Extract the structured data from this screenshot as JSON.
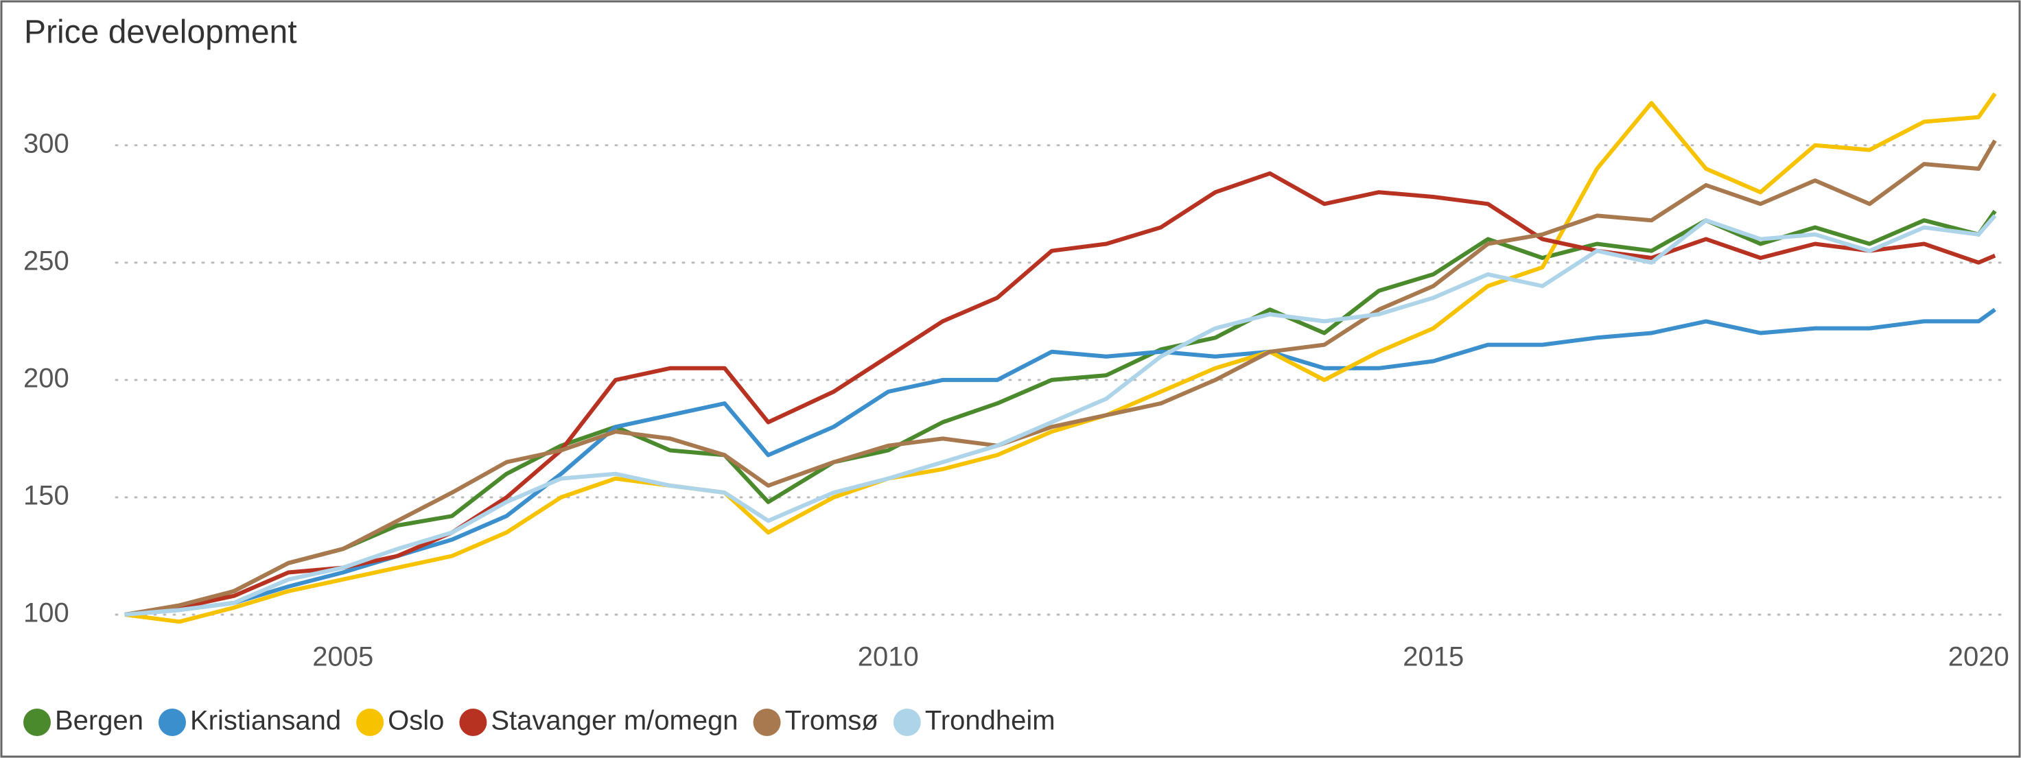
{
  "chart_data": {
    "type": "line",
    "title": "Price development",
    "x": [
      2003,
      2003.5,
      2004,
      2004.5,
      2005,
      2005.5,
      2006,
      2006.5,
      2007,
      2007.5,
      2008,
      2008.5,
      2008.9,
      2009.5,
      2010,
      2010.5,
      2011,
      2011.5,
      2012,
      2012.5,
      2013,
      2013.5,
      2014,
      2014.5,
      2015,
      2015.5,
      2016,
      2016.5,
      2017,
      2017.5,
      2018,
      2018.5,
      2019,
      2019.5,
      2020,
      2020.15
    ],
    "series": [
      {
        "name": "Bergen",
        "color": "#4a8a2c",
        "values": [
          100,
          103,
          110,
          122,
          128,
          138,
          142,
          160,
          172,
          180,
          170,
          168,
          148,
          165,
          170,
          182,
          190,
          200,
          202,
          213,
          218,
          230,
          220,
          238,
          245,
          260,
          252,
          258,
          255,
          268,
          258,
          265,
          258,
          268,
          262,
          272
        ]
      },
      {
        "name": "Kristiansand",
        "color": "#3a8fcc",
        "values": [
          100,
          102,
          105,
          112,
          118,
          125,
          132,
          142,
          160,
          180,
          185,
          190,
          168,
          180,
          195,
          200,
          200,
          212,
          210,
          212,
          210,
          212,
          205,
          205,
          208,
          215,
          215,
          218,
          220,
          225,
          220,
          222,
          222,
          225,
          225,
          230
        ]
      },
      {
        "name": "Oslo",
        "color": "#f7c300",
        "values": [
          100,
          97,
          103,
          110,
          115,
          120,
          125,
          135,
          150,
          158,
          155,
          152,
          135,
          150,
          158,
          162,
          168,
          178,
          185,
          195,
          205,
          212,
          200,
          212,
          222,
          240,
          248,
          290,
          318,
          290,
          280,
          300,
          298,
          310,
          312,
          322
        ]
      },
      {
        "name": "Stavanger m/omegn",
        "color": "#b83222",
        "values": [
          100,
          103,
          108,
          118,
          120,
          125,
          135,
          150,
          170,
          200,
          205,
          205,
          182,
          195,
          210,
          225,
          235,
          255,
          258,
          265,
          280,
          288,
          275,
          280,
          278,
          275,
          260,
          255,
          252,
          260,
          252,
          258,
          255,
          258,
          250,
          253
        ]
      },
      {
        "name": "Tromsø",
        "color": "#a8794f",
        "values": [
          100,
          104,
          110,
          122,
          128,
          140,
          152,
          165,
          170,
          178,
          175,
          168,
          155,
          165,
          172,
          175,
          172,
          180,
          185,
          190,
          200,
          212,
          215,
          230,
          240,
          258,
          262,
          270,
          268,
          283,
          275,
          285,
          275,
          292,
          290,
          302
        ]
      },
      {
        "name": "Trondheim",
        "color": "#aed4ea",
        "values": [
          100,
          102,
          105,
          115,
          120,
          128,
          135,
          148,
          158,
          160,
          155,
          152,
          140,
          152,
          158,
          165,
          172,
          182,
          192,
          210,
          222,
          228,
          225,
          228,
          235,
          245,
          240,
          255,
          250,
          268,
          260,
          262,
          255,
          265,
          262,
          270
        ]
      }
    ],
    "xlim": [
      2003,
      2020.2
    ],
    "xticks": [
      2005,
      2010,
      2015,
      2020
    ],
    "ylim": [
      93,
      335
    ],
    "yticks": [
      100,
      150,
      200,
      250,
      300
    ],
    "grid": true,
    "legend": "bottom"
  }
}
